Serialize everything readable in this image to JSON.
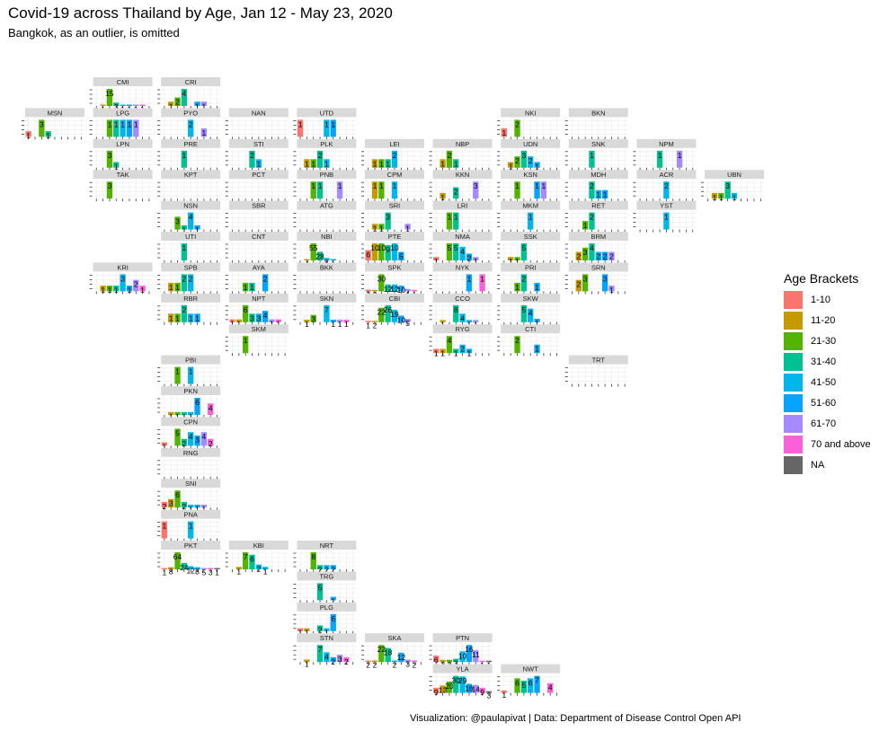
{
  "title": "Covid-19 across Thailand by Age, Jan 12 - May 23, 2020",
  "subtitle": "Bangkok, as an outlier, is omitted",
  "caption": "Visualization: @paulapivat | Data: Department of Disease Control Open API",
  "legend": {
    "title": "Age Brackets",
    "items": [
      {
        "label": "1-10",
        "color": "#F8766D"
      },
      {
        "label": "11-20",
        "color": "#C49A00"
      },
      {
        "label": "21-30",
        "color": "#53B400"
      },
      {
        "label": "31-40",
        "color": "#00C094"
      },
      {
        "label": "41-50",
        "color": "#00B6EB"
      },
      {
        "label": "51-60",
        "color": "#06A4FF"
      },
      {
        "label": "61-70",
        "color": "#A58AFF"
      },
      {
        "label": "70 and above",
        "color": "#FB61D7"
      },
      {
        "label": "NA",
        "color": "#666666"
      }
    ]
  },
  "chart_data": {
    "type": "bar",
    "layout": "geofacet small multiples",
    "series_names": [
      "1-10",
      "11-20",
      "21-30",
      "31-40",
      "41-50",
      "51-60",
      "61-70",
      "70 and above",
      "NA"
    ],
    "panels": [
      {
        "name": "CMI",
        "row": 1,
        "col": 2,
        "values": [
          0,
          1,
          15,
          3,
          1,
          1,
          1,
          1,
          0
        ]
      },
      {
        "name": "CRI",
        "row": 1,
        "col": 3,
        "values": [
          0,
          1,
          2,
          4,
          0,
          1,
          1,
          0,
          0
        ]
      },
      {
        "name": "MSN",
        "row": 2,
        "col": 1,
        "values": [
          1,
          0,
          3,
          1,
          0,
          0,
          0,
          0,
          0
        ]
      },
      {
        "name": "LPG",
        "row": 2,
        "col": 2,
        "values": [
          0,
          0,
          1,
          1,
          1,
          1,
          1,
          0,
          0
        ]
      },
      {
        "name": "PYO",
        "row": 2,
        "col": 3,
        "values": [
          0,
          0,
          0,
          0,
          2,
          0,
          1,
          0,
          0
        ]
      },
      {
        "name": "NAN",
        "row": 2,
        "col": 4,
        "values": [
          0,
          0,
          0,
          0,
          0,
          0,
          0,
          0,
          0
        ]
      },
      {
        "name": "UTD",
        "row": 2,
        "col": 5,
        "values": [
          1,
          0,
          0,
          0,
          1,
          1,
          0,
          0,
          0
        ]
      },
      {
        "name": "NKI",
        "row": 2,
        "col": 8,
        "values": [
          1,
          0,
          2,
          0,
          0,
          0,
          0,
          0,
          0
        ]
      },
      {
        "name": "BKN",
        "row": 2,
        "col": 9,
        "values": [
          0,
          0,
          0,
          0,
          0,
          0,
          0,
          0,
          0
        ]
      },
      {
        "name": "LPN",
        "row": 3,
        "col": 2,
        "values": [
          0,
          0,
          3,
          1,
          0,
          0,
          0,
          0,
          0
        ]
      },
      {
        "name": "PRE",
        "row": 3,
        "col": 3,
        "values": [
          0,
          0,
          0,
          1,
          0,
          0,
          0,
          0,
          0
        ]
      },
      {
        "name": "STI",
        "row": 3,
        "col": 4,
        "values": [
          0,
          0,
          0,
          2,
          1,
          0,
          0,
          0,
          0
        ]
      },
      {
        "name": "PLK",
        "row": 3,
        "col": 5,
        "values": [
          0,
          1,
          1,
          2,
          1,
          0,
          0,
          0,
          0
        ]
      },
      {
        "name": "LEI",
        "row": 3,
        "col": 6,
        "values": [
          0,
          1,
          1,
          1,
          2,
          0,
          0,
          0,
          0
        ]
      },
      {
        "name": "NBP",
        "row": 3,
        "col": 7,
        "values": [
          0,
          1,
          2,
          1,
          0,
          0,
          0,
          0,
          0
        ]
      },
      {
        "name": "UDN",
        "row": 3,
        "col": 8,
        "values": [
          0,
          1,
          2,
          3,
          2,
          1,
          0,
          0,
          0
        ]
      },
      {
        "name": "SNK",
        "row": 3,
        "col": 9,
        "values": [
          0,
          0,
          0,
          1,
          0,
          0,
          0,
          0,
          0
        ]
      },
      {
        "name": "NPM",
        "row": 3,
        "col": 10,
        "values": [
          0,
          0,
          0,
          1,
          0,
          0,
          1,
          0,
          0
        ]
      },
      {
        "name": "TAK",
        "row": 4,
        "col": 2,
        "values": [
          0,
          0,
          3,
          0,
          0,
          0,
          0,
          0,
          0
        ]
      },
      {
        "name": "KPT",
        "row": 4,
        "col": 3,
        "values": [
          0,
          0,
          0,
          0,
          0,
          0,
          0,
          0,
          0
        ]
      },
      {
        "name": "PCT",
        "row": 4,
        "col": 4,
        "values": [
          0,
          0,
          0,
          0,
          0,
          0,
          0,
          0,
          0
        ]
      },
      {
        "name": "PNB",
        "row": 4,
        "col": 5,
        "values": [
          0,
          0,
          1,
          1,
          0,
          0,
          1,
          0,
          0
        ]
      },
      {
        "name": "CPM",
        "row": 4,
        "col": 6,
        "values": [
          0,
          1,
          1,
          0,
          1,
          0,
          0,
          0,
          0
        ]
      },
      {
        "name": "KKN",
        "row": 4,
        "col": 7,
        "values": [
          0,
          1,
          0,
          2,
          0,
          0,
          3,
          0,
          0
        ]
      },
      {
        "name": "KSN",
        "row": 4,
        "col": 8,
        "values": [
          0,
          0,
          1,
          0,
          0,
          1,
          1,
          0,
          0
        ]
      },
      {
        "name": "MDH",
        "row": 4,
        "col": 9,
        "values": [
          0,
          0,
          0,
          2,
          1,
          1,
          0,
          0,
          0
        ]
      },
      {
        "name": "ACR",
        "row": 4,
        "col": 10,
        "values": [
          0,
          0,
          0,
          0,
          2,
          0,
          0,
          0,
          0
        ]
      },
      {
        "name": "UBN",
        "row": 4,
        "col": 11,
        "values": [
          0,
          1,
          1,
          3,
          1,
          0,
          0,
          0,
          0
        ]
      },
      {
        "name": "NSN",
        "row": 5,
        "col": 3,
        "values": [
          0,
          0,
          3,
          1,
          4,
          1,
          0,
          0,
          0
        ]
      },
      {
        "name": "SBR",
        "row": 5,
        "col": 4,
        "values": [
          0,
          0,
          0,
          0,
          0,
          0,
          0,
          0,
          0
        ]
      },
      {
        "name": "ATG",
        "row": 5,
        "col": 5,
        "values": [
          0,
          0,
          0,
          0,
          0,
          0,
          0,
          0,
          0
        ]
      },
      {
        "name": "SRI",
        "row": 5,
        "col": 6,
        "values": [
          0,
          1,
          1,
          3,
          0,
          0,
          1,
          0,
          0
        ]
      },
      {
        "name": "LRI",
        "row": 5,
        "col": 7,
        "values": [
          0,
          0,
          1,
          1,
          0,
          0,
          0,
          0,
          0
        ]
      },
      {
        "name": "MKM",
        "row": 5,
        "col": 8,
        "values": [
          0,
          0,
          0,
          0,
          1,
          0,
          0,
          0,
          0
        ]
      },
      {
        "name": "RET",
        "row": 5,
        "col": 9,
        "values": [
          0,
          0,
          1,
          2,
          0,
          0,
          0,
          0,
          0
        ]
      },
      {
        "name": "YST",
        "row": 5,
        "col": 10,
        "values": [
          0,
          0,
          0,
          0,
          1,
          0,
          0,
          0,
          0
        ]
      },
      {
        "name": "UTI",
        "row": 6,
        "col": 3,
        "values": [
          0,
          0,
          0,
          1,
          0,
          0,
          0,
          0,
          0
        ]
      },
      {
        "name": "CNT",
        "row": 6,
        "col": 4,
        "values": [
          0,
          0,
          0,
          0,
          0,
          0,
          0,
          0,
          0
        ]
      },
      {
        "name": "NBI",
        "row": 6,
        "col": 5,
        "values": [
          0,
          4,
          55,
          28,
          8,
          1,
          0,
          0,
          0
        ]
      },
      {
        "name": "PTE",
        "row": 6,
        "col": 6,
        "values": [
          6,
          10,
          10,
          9,
          10,
          5,
          0,
          0,
          0
        ]
      },
      {
        "name": "NMA",
        "row": 6,
        "col": 7,
        "values": [
          1,
          0,
          5,
          5,
          4,
          2,
          1,
          0,
          0
        ]
      },
      {
        "name": "SSK",
        "row": 6,
        "col": 8,
        "values": [
          0,
          1,
          1,
          5,
          0,
          0,
          0,
          0,
          0
        ]
      },
      {
        "name": "BRM",
        "row": 6,
        "col": 9,
        "values": [
          0,
          2,
          3,
          4,
          2,
          2,
          2,
          0,
          0
        ]
      },
      {
        "name": "KRI",
        "row": 7,
        "col": 2,
        "values": [
          0,
          1,
          1,
          1,
          3,
          1,
          2,
          1,
          0
        ]
      },
      {
        "name": "SPB",
        "row": 7,
        "col": 3,
        "values": [
          0,
          1,
          1,
          2,
          2,
          0,
          0,
          0,
          0
        ]
      },
      {
        "name": "AYA",
        "row": 7,
        "col": 4,
        "values": [
          0,
          0,
          1,
          1,
          0,
          2,
          0,
          0,
          0
        ]
      },
      {
        "name": "BKK",
        "row": 7,
        "col": 5,
        "values": [
          0,
          0,
          0,
          0,
          0,
          0,
          0,
          0,
          0
        ]
      },
      {
        "name": "SPK",
        "row": 7,
        "col": 6,
        "values": [
          3,
          2,
          30,
          12,
          12,
          10,
          4,
          1,
          0
        ]
      },
      {
        "name": "NYK",
        "row": 7,
        "col": 7,
        "values": [
          0,
          0,
          0,
          0,
          0,
          1,
          0,
          1,
          0
        ]
      },
      {
        "name": "PRI",
        "row": 7,
        "col": 8,
        "values": [
          0,
          0,
          1,
          2,
          0,
          1,
          0,
          0,
          0
        ]
      },
      {
        "name": "SRN",
        "row": 7,
        "col": 9,
        "values": [
          0,
          2,
          3,
          0,
          0,
          3,
          1,
          0,
          0
        ]
      },
      {
        "name": "RBR",
        "row": 8,
        "col": 3,
        "values": [
          0,
          1,
          1,
          2,
          1,
          1,
          0,
          0,
          0
        ]
      },
      {
        "name": "NPT",
        "row": 8,
        "col": 4,
        "values": [
          1,
          1,
          6,
          3,
          3,
          4,
          1,
          1,
          0
        ]
      },
      {
        "name": "SKN",
        "row": 8,
        "col": 5,
        "values": [
          0,
          1,
          3,
          0,
          7,
          1,
          1,
          1,
          0
        ]
      },
      {
        "name": "CBI",
        "row": 8,
        "col": 6,
        "values": [
          1,
          2,
          22,
          26,
          19,
          10,
          5,
          0,
          0
        ]
      },
      {
        "name": "CCO",
        "row": 8,
        "col": 7,
        "values": [
          0,
          1,
          0,
          8,
          4,
          1,
          1,
          0,
          0
        ]
      },
      {
        "name": "SKW",
        "row": 8,
        "col": 8,
        "values": [
          0,
          0,
          0,
          5,
          4,
          1,
          0,
          0,
          0
        ]
      },
      {
        "name": "SKM",
        "row": 9,
        "col": 4,
        "values": [
          0,
          0,
          1,
          0,
          0,
          0,
          0,
          0,
          0
        ]
      },
      {
        "name": "RYG",
        "row": 9,
        "col": 7,
        "values": [
          1,
          1,
          4,
          1,
          2,
          1,
          0,
          0,
          0
        ]
      },
      {
        "name": "CTI",
        "row": 9,
        "col": 8,
        "values": [
          0,
          0,
          2,
          0,
          0,
          1,
          0,
          0,
          0
        ]
      },
      {
        "name": "PBI",
        "row": 10,
        "col": 3,
        "values": [
          0,
          0,
          1,
          0,
          1,
          0,
          0,
          0,
          0
        ]
      },
      {
        "name": "TRT",
        "row": 10,
        "col": 9,
        "values": [
          0,
          0,
          0,
          0,
          0,
          0,
          0,
          0,
          0
        ]
      },
      {
        "name": "PKN",
        "row": 11,
        "col": 3,
        "values": [
          0,
          1,
          1,
          1,
          1,
          6,
          0,
          4,
          0
        ]
      },
      {
        "name": "CPN",
        "row": 12,
        "col": 3,
        "values": [
          1,
          0,
          5,
          2,
          4,
          3,
          4,
          2,
          0
        ]
      },
      {
        "name": "RNG",
        "row": 13,
        "col": 3,
        "values": [
          0,
          0,
          0,
          0,
          0,
          0,
          0,
          0,
          0
        ]
      },
      {
        "name": "SNI",
        "row": 14,
        "col": 3,
        "values": [
          2,
          3,
          6,
          2,
          1,
          1,
          1,
          0,
          0
        ]
      },
      {
        "name": "PNA",
        "row": 15,
        "col": 3,
        "values": [
          1,
          0,
          0,
          0,
          1,
          0,
          0,
          0,
          0
        ]
      },
      {
        "name": "PKT",
        "row": 16,
        "col": 3,
        "values": [
          1,
          8,
          64,
          24,
          12,
          8,
          5,
          3,
          1
        ]
      },
      {
        "name": "KBI",
        "row": 16,
        "col": 4,
        "values": [
          0,
          1,
          7,
          6,
          2,
          1,
          0,
          0,
          0
        ]
      },
      {
        "name": "NRT",
        "row": 16,
        "col": 5,
        "values": [
          0,
          0,
          8,
          2,
          2,
          2,
          0,
          0,
          0
        ]
      },
      {
        "name": "TRG",
        "row": 17,
        "col": 5,
        "values": [
          0,
          0,
          0,
          5,
          0,
          1,
          0,
          0,
          0
        ]
      },
      {
        "name": "PLG",
        "row": 18,
        "col": 5,
        "values": [
          1,
          1,
          0,
          2,
          1,
          6,
          0,
          0,
          0
        ]
      },
      {
        "name": "STN",
        "row": 19,
        "col": 5,
        "values": [
          0,
          1,
          0,
          7,
          4,
          2,
          3,
          2,
          0
        ]
      },
      {
        "name": "SKA",
        "row": 19,
        "col": 6,
        "values": [
          2,
          2,
          22,
          18,
          2,
          12,
          3,
          2,
          0
        ]
      },
      {
        "name": "PTN",
        "row": 19,
        "col": 7,
        "values": [
          6,
          2,
          2,
          3,
          10,
          16,
          11,
          1,
          1
        ]
      },
      {
        "name": "YLA",
        "row": 20,
        "col": 7,
        "values": [
          9,
          13,
          20,
          30,
          29,
          16,
          14,
          9,
          3
        ]
      },
      {
        "name": "NWT",
        "row": 20,
        "col": 8,
        "values": [
          1,
          0,
          6,
          5,
          6,
          7,
          0,
          4,
          0
        ]
      }
    ]
  }
}
